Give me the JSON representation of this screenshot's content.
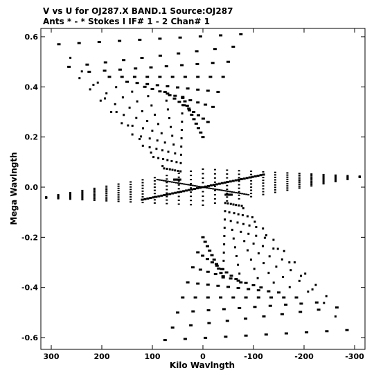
{
  "header": {
    "line1": "V vs U for OJ287.X BAND.1   Source:OJ287",
    "line2": "Ants * - *     Stokes I  IF# 1 - 2  Chan# 1"
  },
  "chart_data": {
    "type": "scatter",
    "title": "V vs U for OJ287.X BAND.1   Source:OJ287",
    "subtitle": "Ants * - *     Stokes I  IF# 1 - 2  Chan# 1",
    "xlabel": "Kilo Wavlngth",
    "ylabel": "Mega Wavlngth",
    "xlim": [
      300,
      -310
    ],
    "ylim": [
      -0.62,
      0.65
    ],
    "x_reversed": true,
    "xticks": [
      300,
      200,
      100,
      0,
      -100,
      -200,
      -300
    ],
    "xtick_labels": [
      "300",
      "200",
      "100",
      "0",
      "-100",
      "-200",
      "-300"
    ],
    "yticks": [
      0.6,
      0.4,
      0.2,
      0.0,
      -0.2,
      -0.4,
      -0.6
    ],
    "ytick_labels": [
      "0.6",
      "0.4",
      "0.2",
      "0.0",
      "-0.2",
      "-0.4",
      "-0.6"
    ],
    "grid": false,
    "marker_color": "#000000",
    "coverage": {
      "description_free": true,
      "upper_left_tracks": {
        "u_start": [
          285,
          265,
          225,
          185,
          150,
          115,
          75,
          40
        ],
        "v_start": [
          0.57,
          0.48,
          0.46,
          0.44,
          0.42,
          0.4,
          0.38,
          0.36
        ],
        "u_end": [
          -75,
          -60,
          -50,
          -40,
          -30,
          -20,
          -10,
          0
        ],
        "v_end": [
          0.61,
          0.56,
          0.5,
          0.44,
          0.38,
          0.32,
          0.26,
          0.2
        ],
        "convergence_u": 45,
        "convergence_v": 0.03
      },
      "lower_right_tracks": {
        "u_start": [
          -285,
          -265,
          -225,
          -185,
          -150,
          -115,
          -75,
          -40
        ],
        "v_start": [
          -0.57,
          -0.48,
          -0.46,
          -0.44,
          -0.42,
          -0.4,
          -0.38,
          -0.36
        ],
        "u_end": [
          75,
          60,
          50,
          40,
          30,
          20,
          10,
          0
        ],
        "v_end": [
          -0.61,
          -0.56,
          -0.5,
          -0.44,
          -0.38,
          -0.32,
          -0.26,
          -0.2
        ],
        "convergence_u": -45,
        "convergence_v": -0.03
      },
      "equatorial_diamond": {
        "u_extent": [
          310,
          -310
        ],
        "v_extent": [
          -0.07,
          0.1
        ]
      }
    }
  }
}
